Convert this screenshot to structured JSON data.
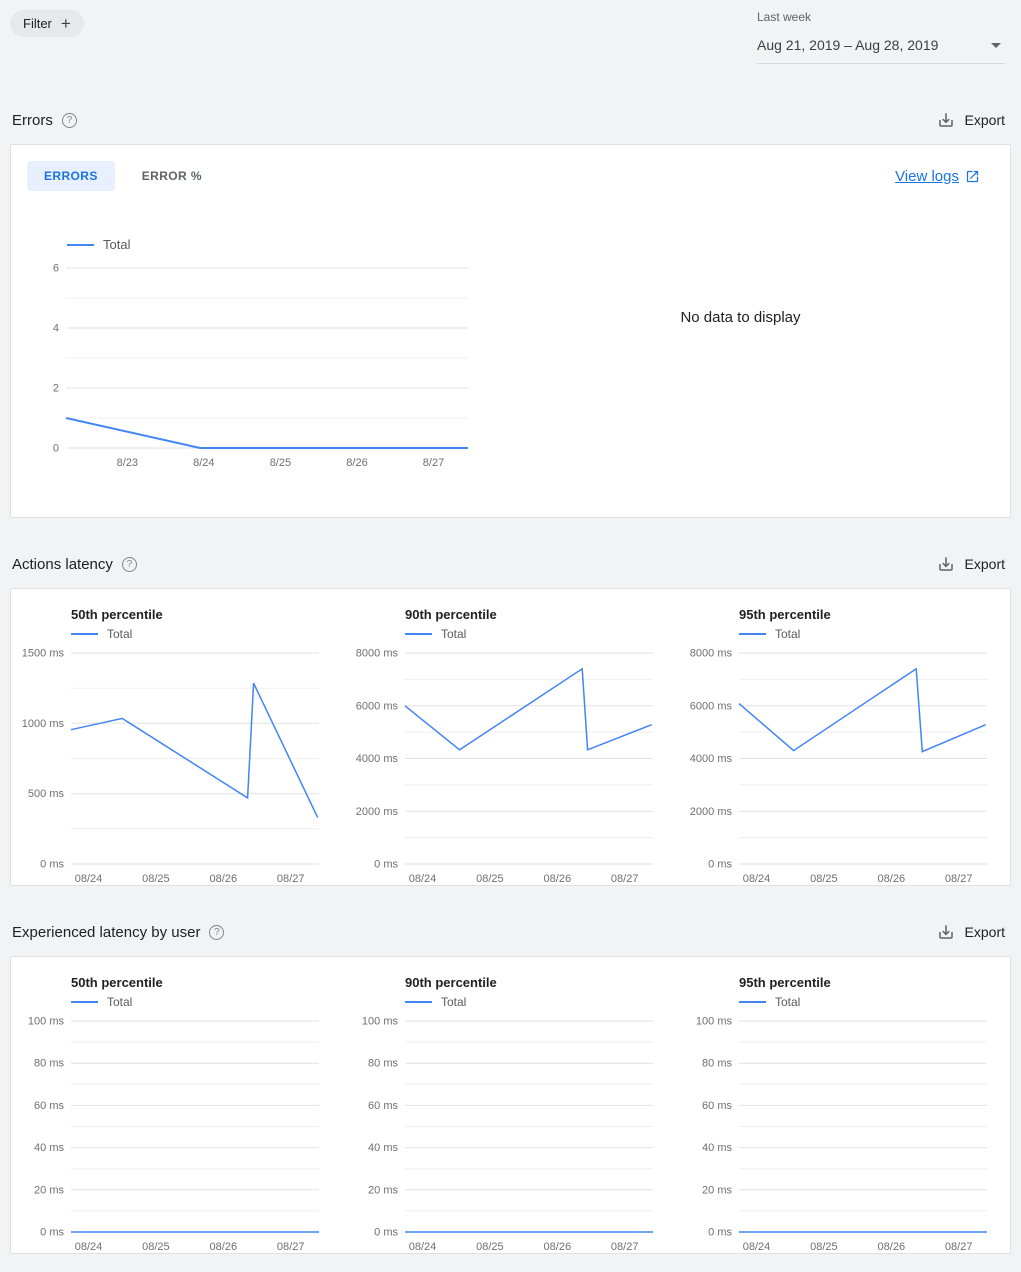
{
  "toolbar": {
    "filter_label": "Filter",
    "date_range": {
      "preset_label": "Last week",
      "value": "Aug 21, 2019 – Aug 28, 2019"
    }
  },
  "sections": {
    "errors": {
      "title": "Errors",
      "export_label": "Export",
      "tabs": [
        {
          "label": "ERRORS",
          "active": true
        },
        {
          "label": "ERROR %",
          "active": false
        }
      ],
      "view_logs_label": "View logs",
      "no_data_text": "No data to display"
    },
    "actions_latency": {
      "title": "Actions latency",
      "export_label": "Export"
    },
    "experienced_latency": {
      "title": "Experienced latency by user",
      "export_label": "Export"
    }
  },
  "colors": {
    "line": "#4285f4",
    "accent": "#1a73e8",
    "active_tab_bg": "#e8f0fe"
  },
  "chart_data": [
    {
      "id": "errors-total",
      "type": "line",
      "title": "Errors",
      "x_domain": [
        22.2,
        27.45
      ],
      "x_ticks": [
        23,
        24,
        25,
        26,
        27
      ],
      "x_tick_labels": [
        "8/23",
        "8/24",
        "8/25",
        "8/26",
        "8/27"
      ],
      "y_domain": [
        0,
        6
      ],
      "y_grid": [
        0,
        1,
        2,
        3,
        4,
        5,
        6
      ],
      "y_ticks": [
        0,
        2,
        4,
        6
      ],
      "y_tick_labels": [
        "0",
        "2",
        "4",
        "6"
      ],
      "series": [
        {
          "name": "Total",
          "points": [
            [
              22.2,
              1
            ],
            [
              23.95,
              0
            ],
            [
              27.45,
              0
            ]
          ]
        }
      ]
    },
    {
      "id": "actions-latency-p50",
      "type": "line",
      "title": "50th percentile",
      "x_domain": [
        23.74,
        27.42
      ],
      "x_ticks": [
        24,
        25,
        26,
        27
      ],
      "x_tick_labels": [
        "08/24",
        "08/25",
        "08/26",
        "08/27"
      ],
      "y_domain": [
        0,
        1500
      ],
      "y_grid": [
        0,
        250,
        500,
        750,
        1000,
        1250,
        1500
      ],
      "y_ticks": [
        0,
        500,
        1000,
        1500
      ],
      "y_tick_labels": [
        "0 ms",
        "500 ms",
        "1000 ms",
        "1500 ms"
      ],
      "series": [
        {
          "name": "Total",
          "points": [
            [
              23.74,
              955
            ],
            [
              24.5,
              1035
            ],
            [
              26.36,
              470
            ],
            [
              26.45,
              1285
            ],
            [
              27.4,
              330
            ]
          ]
        }
      ]
    },
    {
      "id": "actions-latency-p90",
      "type": "line",
      "title": "90th percentile",
      "x_domain": [
        23.74,
        27.42
      ],
      "x_ticks": [
        24,
        25,
        26,
        27
      ],
      "x_tick_labels": [
        "08/24",
        "08/25",
        "08/26",
        "08/27"
      ],
      "y_domain": [
        0,
        8000
      ],
      "y_grid": [
        0,
        1000,
        2000,
        3000,
        4000,
        5000,
        6000,
        7000,
        8000
      ],
      "y_ticks": [
        0,
        2000,
        4000,
        6000,
        8000
      ],
      "y_tick_labels": [
        "0 ms",
        "2000 ms",
        "4000 ms",
        "6000 ms",
        "8000 ms"
      ],
      "series": [
        {
          "name": "Total",
          "points": [
            [
              23.74,
              6000
            ],
            [
              24.55,
              4330
            ],
            [
              26.37,
              7400
            ],
            [
              26.45,
              4330
            ],
            [
              27.4,
              5280
            ]
          ]
        }
      ]
    },
    {
      "id": "actions-latency-p95",
      "type": "line",
      "title": "95th percentile",
      "x_domain": [
        23.74,
        27.42
      ],
      "x_ticks": [
        24,
        25,
        26,
        27
      ],
      "x_tick_labels": [
        "08/24",
        "08/25",
        "08/26",
        "08/27"
      ],
      "y_domain": [
        0,
        8000
      ],
      "y_grid": [
        0,
        1000,
        2000,
        3000,
        4000,
        5000,
        6000,
        7000,
        8000
      ],
      "y_ticks": [
        0,
        2000,
        4000,
        6000,
        8000
      ],
      "y_tick_labels": [
        "0 ms",
        "2000 ms",
        "4000 ms",
        "6000 ms",
        "8000 ms"
      ],
      "series": [
        {
          "name": "Total",
          "points": [
            [
              23.74,
              6080
            ],
            [
              24.55,
              4300
            ],
            [
              26.37,
              7400
            ],
            [
              26.46,
              4260
            ],
            [
              27.4,
              5280
            ]
          ]
        }
      ]
    },
    {
      "id": "experienced-latency-p50",
      "type": "line",
      "title": "50th percentile",
      "x_domain": [
        23.74,
        27.42
      ],
      "x_ticks": [
        24,
        25,
        26,
        27
      ],
      "x_tick_labels": [
        "08/24",
        "08/25",
        "08/26",
        "08/27"
      ],
      "y_domain": [
        0,
        100
      ],
      "y_grid": [
        0,
        10,
        20,
        30,
        40,
        50,
        60,
        70,
        80,
        90,
        100
      ],
      "y_ticks": [
        0,
        20,
        40,
        60,
        80,
        100
      ],
      "y_tick_labels": [
        "0 ms",
        "20 ms",
        "40 ms",
        "60 ms",
        "80 ms",
        "100 ms"
      ],
      "series": [
        {
          "name": "Total",
          "points": [
            [
              23.74,
              0
            ],
            [
              27.42,
              0
            ]
          ]
        }
      ]
    },
    {
      "id": "experienced-latency-p90",
      "type": "line",
      "title": "90th percentile",
      "x_domain": [
        23.74,
        27.42
      ],
      "x_ticks": [
        24,
        25,
        26,
        27
      ],
      "x_tick_labels": [
        "08/24",
        "08/25",
        "08/26",
        "08/27"
      ],
      "y_domain": [
        0,
        100
      ],
      "y_grid": [
        0,
        10,
        20,
        30,
        40,
        50,
        60,
        70,
        80,
        90,
        100
      ],
      "y_ticks": [
        0,
        20,
        40,
        60,
        80,
        100
      ],
      "y_tick_labels": [
        "0 ms",
        "20 ms",
        "40 ms",
        "60 ms",
        "80 ms",
        "100 ms"
      ],
      "series": [
        {
          "name": "Total",
          "points": [
            [
              23.74,
              0
            ],
            [
              27.42,
              0
            ]
          ]
        }
      ]
    },
    {
      "id": "experienced-latency-p95",
      "type": "line",
      "title": "95th percentile",
      "x_domain": [
        23.74,
        27.42
      ],
      "x_ticks": [
        24,
        25,
        26,
        27
      ],
      "x_tick_labels": [
        "08/24",
        "08/25",
        "08/26",
        "08/27"
      ],
      "y_domain": [
        0,
        100
      ],
      "y_grid": [
        0,
        10,
        20,
        30,
        40,
        50,
        60,
        70,
        80,
        90,
        100
      ],
      "y_ticks": [
        0,
        20,
        40,
        60,
        80,
        100
      ],
      "y_tick_labels": [
        "0 ms",
        "20 ms",
        "40 ms",
        "60 ms",
        "80 ms",
        "100 ms"
      ],
      "series": [
        {
          "name": "Total",
          "points": [
            [
              23.74,
              0
            ],
            [
              27.42,
              0
            ]
          ]
        }
      ]
    }
  ]
}
